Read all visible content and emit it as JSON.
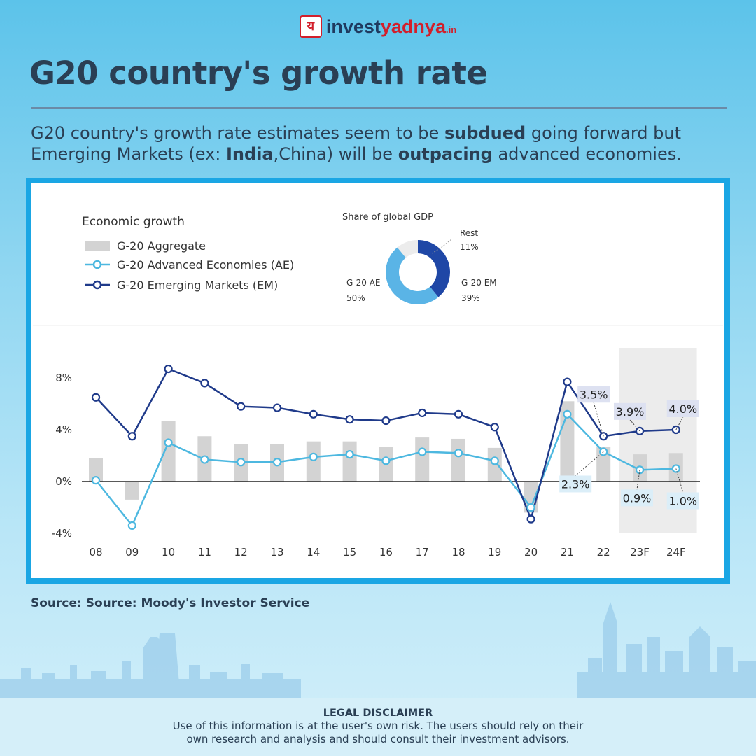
{
  "brand": {
    "logo_glyph": "य",
    "name_part1": "invest",
    "name_part2": "yadnya",
    "name_part3": ".in"
  },
  "title": "G20 country's growth rate",
  "subtitle": {
    "t1": "G20 country's growth rate estimates seem to be ",
    "b1": "subdued",
    "t2": " going forward but Emerging Markets (ex: ",
    "b2": "India",
    "t3": ",China) will be ",
    "b3": "outpacing",
    "t4": " advanced economies."
  },
  "source": "Source: Source: Moody's Investor Service",
  "disclaimer": {
    "title": "LEGAL DISCLAIMER",
    "line1": "Use of this information is at the user's own risk. The users should rely on their",
    "line2": "own research and analysis and should consult their investment advisors."
  },
  "colors": {
    "bar": "#d3d3d3",
    "ae": "#4db8e0",
    "em": "#1f3a8a",
    "forecast_band": "#ececec",
    "donut_ae": "#5ab4e6",
    "donut_em": "#1f47a6",
    "donut_rest": "#ececec"
  },
  "chart_data": [
    {
      "type": "bar+line",
      "title": "Economic growth",
      "categories": [
        "08",
        "09",
        "10",
        "11",
        "12",
        "13",
        "14",
        "15",
        "16",
        "17",
        "18",
        "19",
        "20",
        "21",
        "22",
        "23F",
        "24F"
      ],
      "ylim": [
        -4,
        10
      ],
      "yticks": [
        -4,
        0,
        4,
        8
      ],
      "ytick_labels": [
        "-4%",
        "0%",
        "4%",
        "8%"
      ],
      "forecast_categories": [
        "23F",
        "24F"
      ],
      "grid": false,
      "legend_position": "top-left",
      "series": [
        {
          "name": "G-20 Aggregate",
          "kind": "bar",
          "values": [
            1.8,
            -1.4,
            4.7,
            3.5,
            2.9,
            2.9,
            3.1,
            3.1,
            2.7,
            3.4,
            3.3,
            2.6,
            -2.4,
            6.2,
            2.7,
            2.1,
            2.2
          ]
        },
        {
          "name": "G-20 Advanced Economies (AE)",
          "kind": "line",
          "values": [
            0.1,
            -3.4,
            3.0,
            1.7,
            1.5,
            1.5,
            1.9,
            2.1,
            1.6,
            2.3,
            2.2,
            1.6,
            -2.0,
            5.2,
            2.3,
            0.9,
            1.0
          ]
        },
        {
          "name": "G-20 Emerging Markets (EM)",
          "kind": "line",
          "values": [
            6.5,
            3.5,
            8.7,
            7.6,
            5.8,
            5.7,
            5.2,
            4.8,
            4.7,
            5.3,
            5.2,
            4.2,
            -2.9,
            7.7,
            3.5,
            3.9,
            4.0
          ]
        }
      ],
      "annotations": [
        {
          "series": "G-20 Emerging Markets (EM)",
          "category": "22",
          "label": "3.5%"
        },
        {
          "series": "G-20 Emerging Markets (EM)",
          "category": "23F",
          "label": "3.9%"
        },
        {
          "series": "G-20 Emerging Markets (EM)",
          "category": "24F",
          "label": "4.0%"
        },
        {
          "series": "G-20 Advanced Economies (AE)",
          "category": "22",
          "label": "2.3%"
        },
        {
          "series": "G-20 Advanced Economies (AE)",
          "category": "23F",
          "label": "0.9%"
        },
        {
          "series": "G-20 Advanced Economies (AE)",
          "category": "24F",
          "label": "1.0%"
        }
      ]
    },
    {
      "type": "pie",
      "title": "Share of global GDP",
      "slices": [
        {
          "label": "G-20 EM",
          "value": 39,
          "value_label": "39%"
        },
        {
          "label": "G-20 AE",
          "value": 50,
          "value_label": "50%"
        },
        {
          "label": "Rest",
          "value": 11,
          "value_label": "11%"
        }
      ]
    }
  ]
}
